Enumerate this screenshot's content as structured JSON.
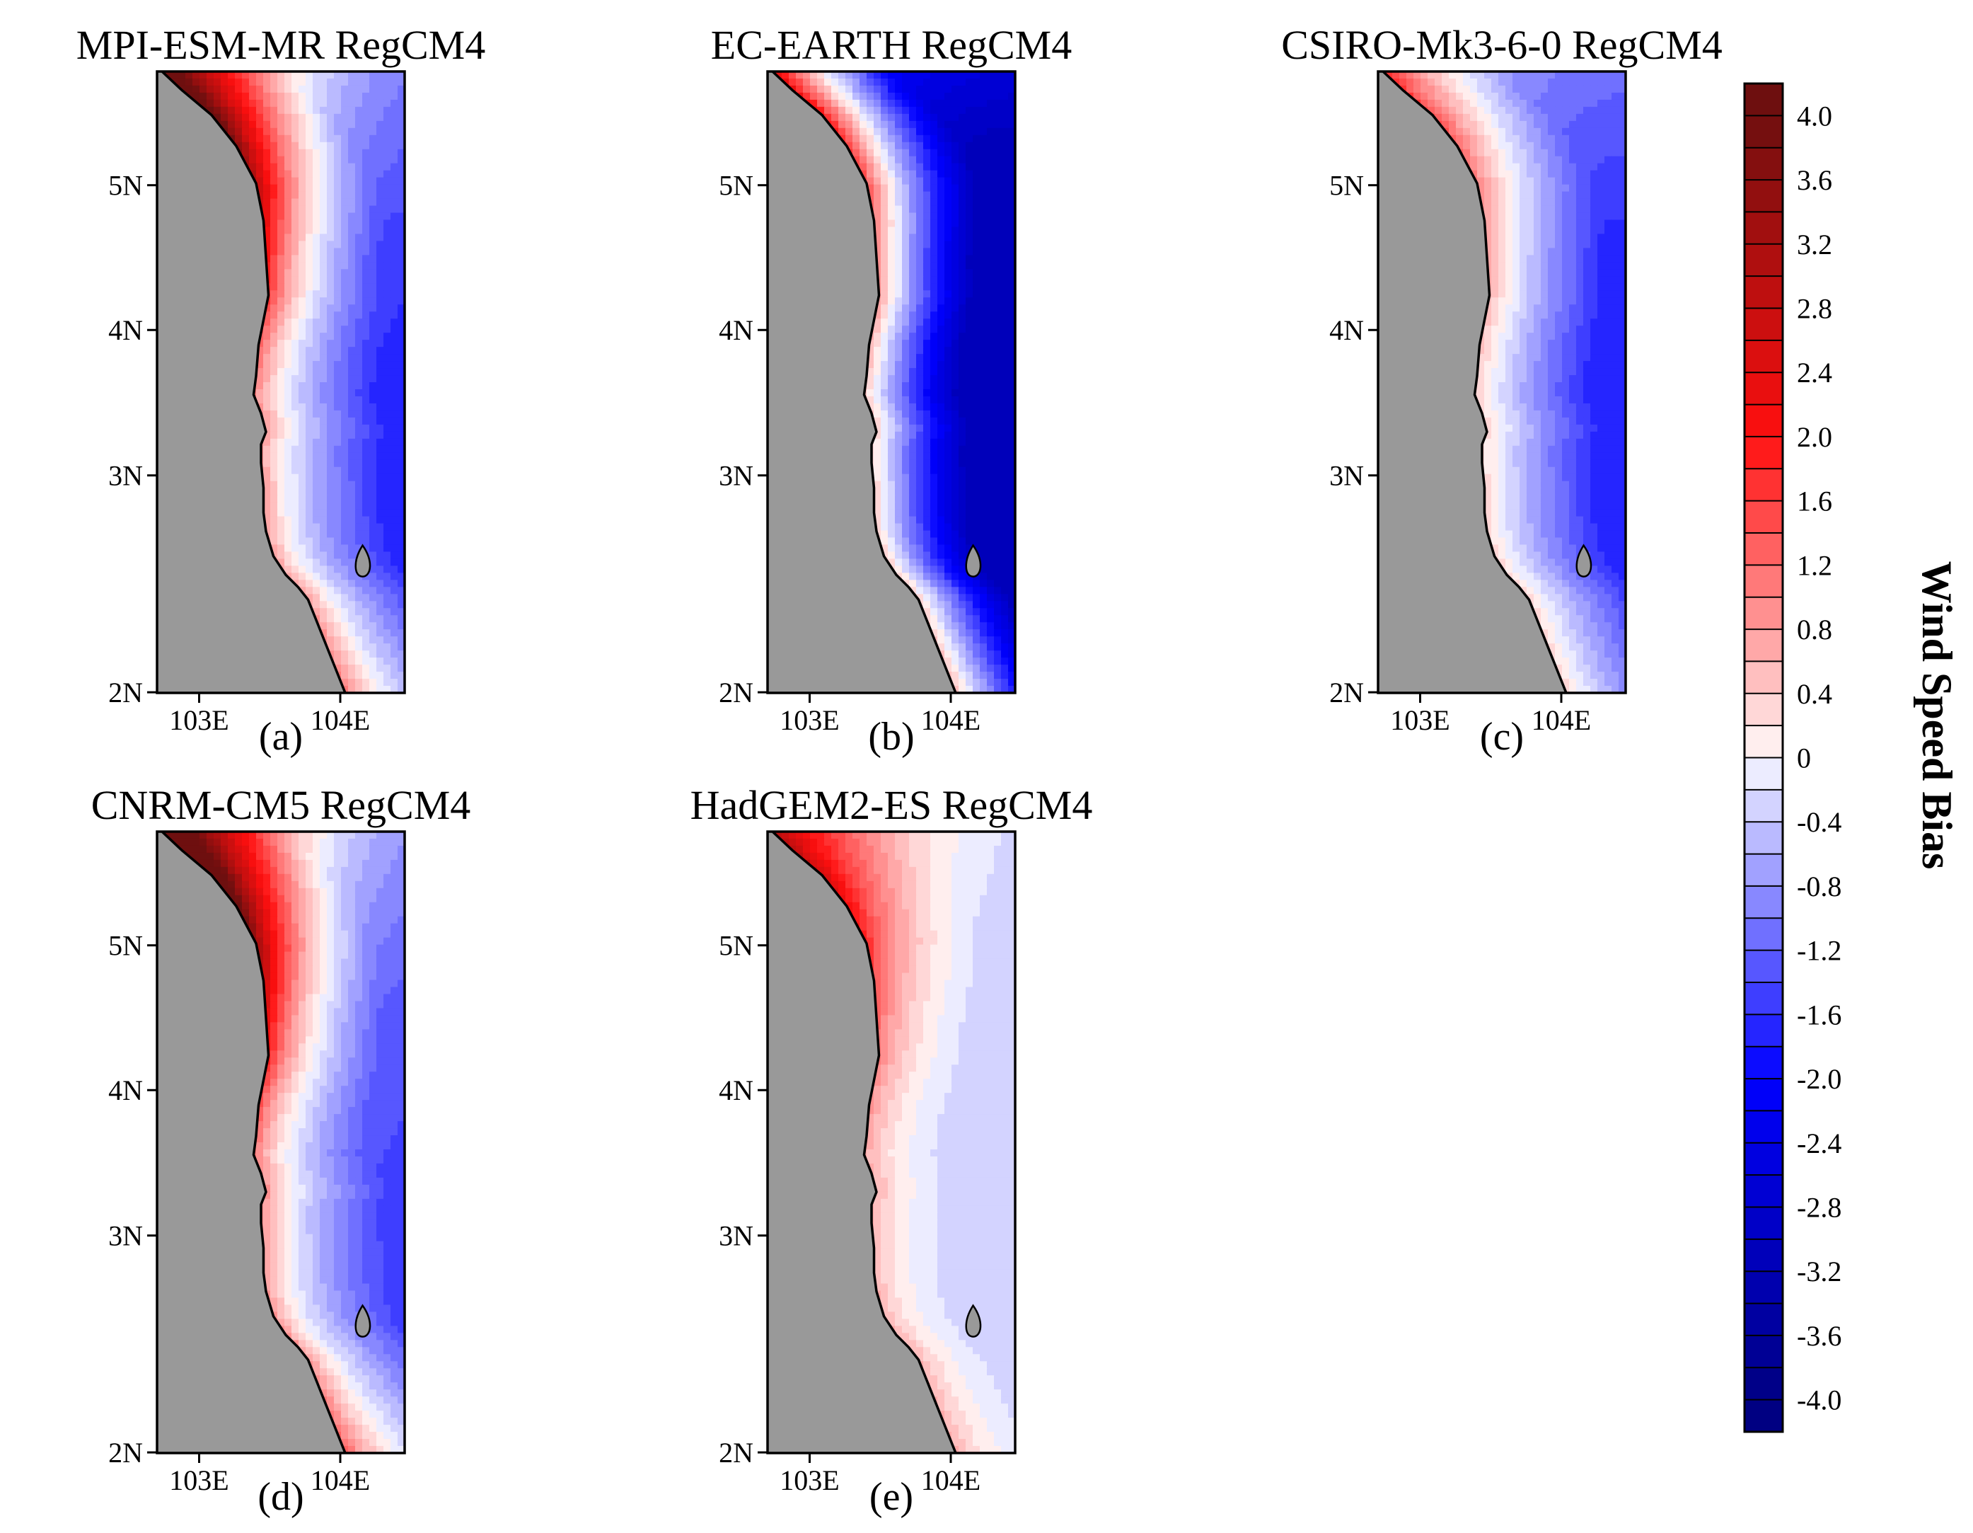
{
  "colors": {
    "land": "#999999",
    "coast": "#000000",
    "frame": "#000000"
  },
  "chart_data": {
    "type": "heatmap",
    "description_variable": "Wind Speed Bias",
    "panels": [
      {
        "id": "a",
        "title": "MPI-ESM-MR  RegCM4",
        "label": "(a)",
        "x_ticks": [
          "103E",
          "104E"
        ],
        "y_ticks": [
          "5N",
          "4N",
          "3N",
          "2N"
        ],
        "x_range": [
          102.7,
          104.45
        ],
        "y_range": [
          2.0,
          5.8
        ],
        "field": {
          "corner_nw": 3.2,
          "coast_rate": 1.3,
          "offshore_gradient": -1.5,
          "north_boost": 2.4,
          "south_rise": 0.5,
          "east_min": -1.3
        }
      },
      {
        "id": "b",
        "title": "EC-EARTH  RegCM4",
        "label": "(b)",
        "x_ticks": [
          "103E",
          "104E"
        ],
        "y_ticks": [
          "5N",
          "4N",
          "3N",
          "2N"
        ],
        "x_range": [
          102.7,
          104.45
        ],
        "y_range": [
          2.0,
          5.8
        ],
        "field": {
          "corner_nw": 1.2,
          "coast_rate": 0.6,
          "offshore_gradient": -3.6,
          "north_boost": 1.6,
          "south_rise": 0.3,
          "east_min": -2.2
        }
      },
      {
        "id": "c",
        "title": "CSIRO-Mk3-6-0  RegCM4",
        "label": "(c)",
        "x_ticks": [
          "103E",
          "104E"
        ],
        "y_ticks": [
          "5N",
          "4N",
          "3N",
          "2N"
        ],
        "x_range": [
          102.7,
          104.45
        ],
        "y_range": [
          2.0,
          5.8
        ],
        "field": {
          "corner_nw": 1.0,
          "coast_rate": 0.5,
          "offshore_gradient": -1.6,
          "north_boost": 0.9,
          "south_rise": 0.0,
          "east_min": -1.5
        }
      },
      {
        "id": "d",
        "title": "CNRM-CM5  RegCM4",
        "label": "(d)",
        "x_ticks": [
          "103E",
          "104E"
        ],
        "y_ticks": [
          "5N",
          "4N",
          "3N",
          "2N"
        ],
        "x_range": [
          102.7,
          104.45
        ],
        "y_range": [
          2.0,
          5.8
        ],
        "field": {
          "corner_nw": 3.8,
          "coast_rate": 1.4,
          "offshore_gradient": -1.3,
          "north_boost": 2.8,
          "south_rise": 0.8,
          "east_min": -1.2
        }
      },
      {
        "id": "e",
        "title": "HadGEM2-ES  RegCM4",
        "label": "(e)",
        "x_ticks": [
          "103E",
          "104E"
        ],
        "y_ticks": [
          "5N",
          "4N",
          "3N",
          "2N"
        ],
        "x_range": [
          102.7,
          104.45
        ],
        "y_range": [
          2.0,
          5.8
        ],
        "field": {
          "corner_nw": 2.0,
          "coast_rate": 1.0,
          "offshore_gradient": -0.45,
          "north_boost": 0.9,
          "south_rise": 0.1,
          "east_min": -0.2
        }
      }
    ],
    "colorbar": {
      "label": "Wind Speed Bias",
      "range": [
        -4.2,
        4.2
      ],
      "tick_labels": [
        "4.0",
        "3.6",
        "3.2",
        "2.8",
        "2.4",
        "2.0",
        "1.6",
        "1.2",
        "0.8",
        "0.4",
        "0",
        "-0.4",
        "-0.8",
        "-1.2",
        "-1.6",
        "-2.0",
        "-2.4",
        "-2.8",
        "-3.2",
        "-3.6",
        "-4.0"
      ],
      "levels": [
        4.2,
        4.0,
        3.8,
        3.6,
        3.4,
        3.2,
        3.0,
        2.8,
        2.6,
        2.4,
        2.2,
        2.0,
        1.8,
        1.6,
        1.4,
        1.2,
        1.0,
        0.8,
        0.6,
        0.4,
        0.2,
        0.0,
        -0.2,
        -0.4,
        -0.6,
        -0.8,
        -1.0,
        -1.2,
        -1.4,
        -1.6,
        -1.8,
        -2.0,
        -2.2,
        -2.4,
        -2.6,
        -2.8,
        -3.0,
        -3.2,
        -3.4,
        -3.6,
        -3.8,
        -4.0,
        -4.2
      ]
    }
  }
}
